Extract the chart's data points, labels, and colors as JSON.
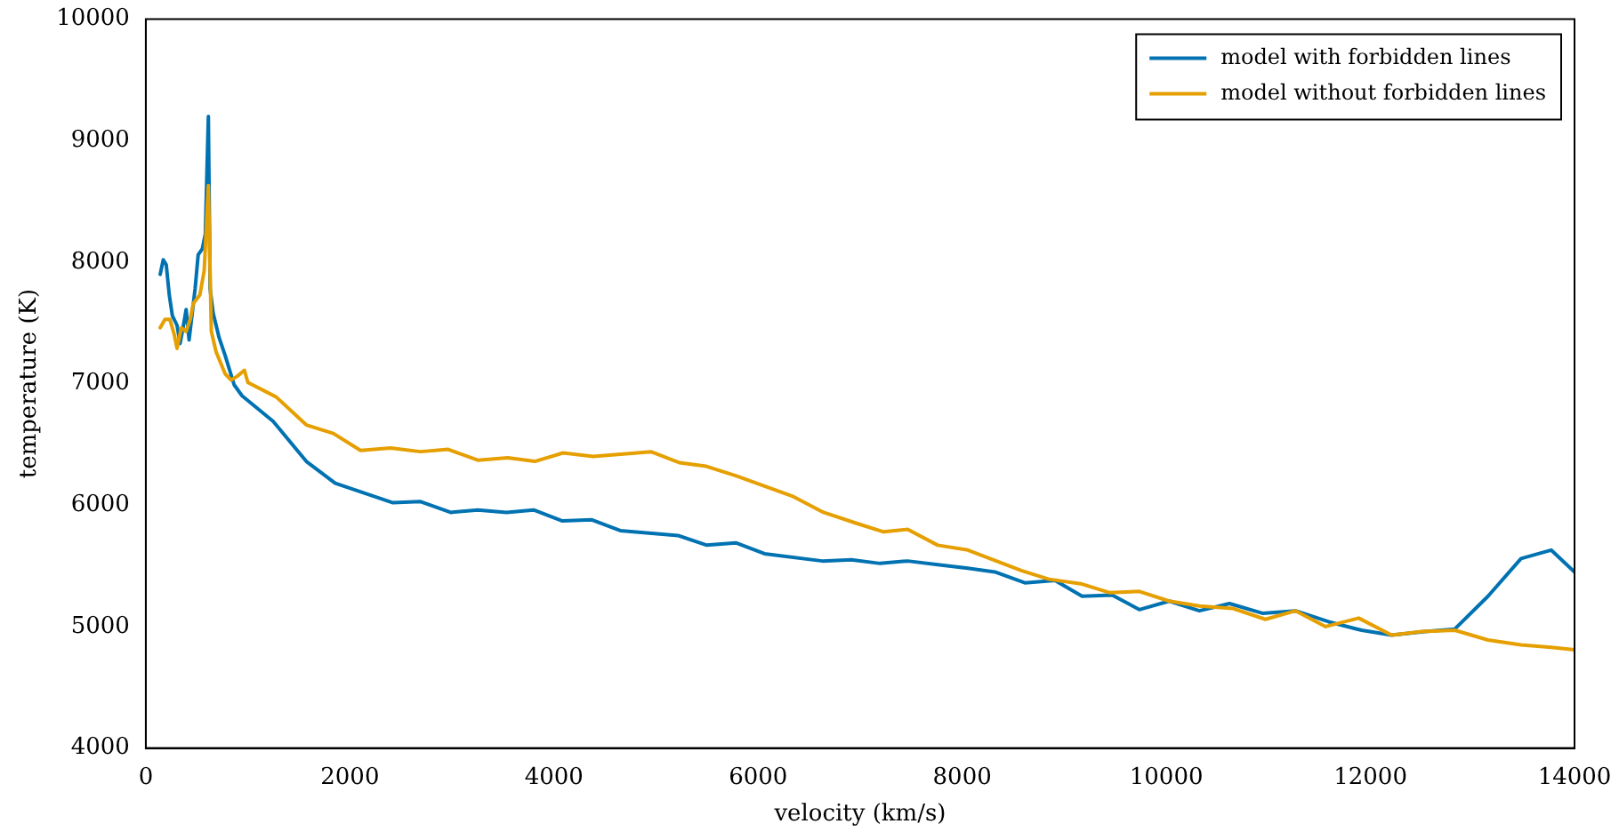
{
  "chart_data": {
    "type": "line",
    "xlabel": "velocity (km/s)",
    "ylabel": "temperature (K)",
    "xlim": [
      0,
      14000
    ],
    "xticks": [
      0,
      2000,
      4000,
      6000,
      8000,
      10000,
      12000,
      14000
    ],
    "ylim": [
      4000,
      10000
    ],
    "yticks": [
      4000,
      5000,
      6000,
      7000,
      8000,
      9000,
      10000
    ],
    "grid": false,
    "legend": "top right",
    "marker": "none",
    "line_style": "solid",
    "series": [
      {
        "name": "model with forbidden lines",
        "color": "#0072b2",
        "x": [
          141,
          171,
          200,
          230,
          260,
          306,
          336,
          365,
          395,
          424,
          483,
          513,
          554,
          583,
          613,
          630,
          660,
          718,
          778,
          866,
          943,
          1248,
          1573,
          1856,
          2422,
          2687,
          2987,
          3253,
          3535,
          3800,
          4083,
          4366,
          4649,
          5215,
          5498,
          5781,
          6063,
          6629,
          6912,
          7195,
          7465,
          7760,
          8055,
          8320,
          8614,
          8909,
          9175,
          9470,
          9735,
          10029,
          10324,
          10619,
          10942,
          11266,
          11590,
          11914,
          12208,
          12532,
          12827,
          13152,
          13476,
          13771,
          14000
        ],
        "values": [
          7900,
          8020,
          7980,
          7730,
          7560,
          7480,
          7330,
          7460,
          7610,
          7360,
          7780,
          8060,
          8110,
          8230,
          9200,
          7780,
          7580,
          7380,
          7230,
          6990,
          6900,
          6690,
          6360,
          6180,
          6020,
          6030,
          5940,
          5960,
          5940,
          5960,
          5870,
          5880,
          5790,
          5750,
          5670,
          5690,
          5600,
          5540,
          5550,
          5520,
          5540,
          5510,
          5480,
          5450,
          5360,
          5380,
          5250,
          5260,
          5140,
          5210,
          5130,
          5190,
          5110,
          5130,
          5040,
          4970,
          4930,
          4960,
          4980,
          5250,
          5560,
          5630,
          5450
        ]
      },
      {
        "name": "model without forbidden lines",
        "color": "#e69f00",
        "x": [
          141,
          188,
          235,
          277,
          306,
          348,
          395,
          436,
          465,
          530,
          572,
          613,
          642,
          689,
          778,
          836,
          895,
          966,
          1000,
          1278,
          1573,
          1838,
          2104,
          2398,
          2693,
          2958,
          3253,
          3547,
          3812,
          4089,
          4384,
          4950,
          5227,
          5492,
          5786,
          6346,
          6641,
          6965,
          7230,
          7465,
          7760,
          8055,
          8585,
          8850,
          9175,
          9440,
          9735,
          10029,
          10324,
          10648,
          10971,
          11266,
          11561,
          11885,
          12208,
          12502,
          12827,
          13152,
          13476,
          13771,
          14000
        ],
        "values": [
          7460,
          7530,
          7530,
          7410,
          7290,
          7460,
          7430,
          7530,
          7660,
          7730,
          7930,
          8630,
          7430,
          7260,
          7080,
          7030,
          7060,
          7110,
          7010,
          6890,
          6660,
          6590,
          6450,
          6470,
          6440,
          6460,
          6370,
          6390,
          6360,
          6430,
          6400,
          6440,
          6350,
          6320,
          6240,
          6070,
          5940,
          5850,
          5780,
          5800,
          5670,
          5630,
          5460,
          5390,
          5350,
          5280,
          5290,
          5210,
          5170,
          5150,
          5060,
          5130,
          5000,
          5070,
          4930,
          4960,
          4970,
          4890,
          4850,
          4830,
          4810
        ]
      }
    ]
  }
}
